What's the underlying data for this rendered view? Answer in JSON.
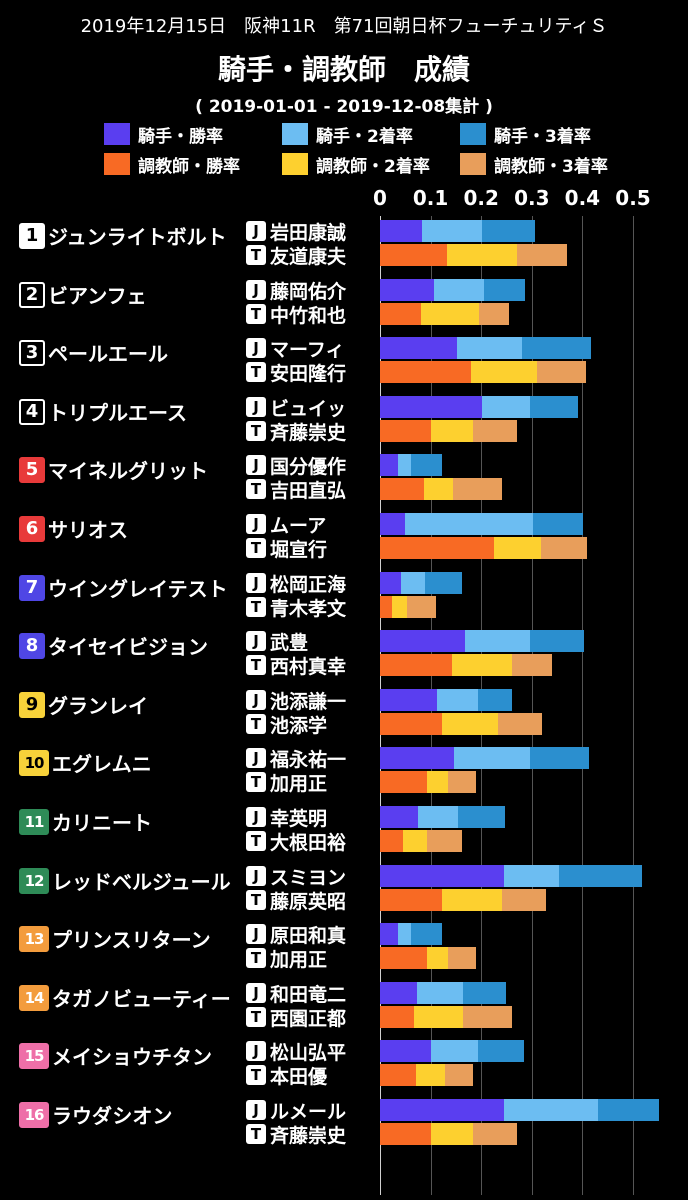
{
  "header": {
    "race_line": "2019年12月15日　阪神11R　第71回朝日杯フューチュリティＳ",
    "title": "騎手・調教師　成績",
    "period": "( 2019-01-01 - 2019-12-08集計 )"
  },
  "legend": [
    {
      "label": "騎手・勝率",
      "color": "#5a3ef0"
    },
    {
      "label": "騎手・2着率",
      "color": "#6cbdf2"
    },
    {
      "label": "騎手・3着率",
      "color": "#2b8fcf"
    },
    {
      "label": "調教師・勝率",
      "color": "#f86a24"
    },
    {
      "label": "調教師・2着率",
      "color": "#fdd02f"
    },
    {
      "label": "調教師・3着率",
      "color": "#e89e5b"
    }
  ],
  "role_marks": {
    "jockey": "J",
    "trainer": "T"
  },
  "chart_data": {
    "type": "bar",
    "stacked": true,
    "orientation": "horizontal",
    "xlim": [
      0,
      0.5
    ],
    "x_ticks": [
      "0",
      "0.1",
      "0.2",
      "0.3",
      "0.4",
      "0.5"
    ],
    "grid": true,
    "horses": [
      {
        "num": "1",
        "name": "ジュンライトボルト",
        "badge_bg": "#ffffff",
        "badge_fg": "#000000",
        "jockey": "岩田康誠",
        "jockey_rates": [
          0.083,
          0.118,
          0.105
        ],
        "trainer": "友道康夫",
        "trainer_rates": [
          0.133,
          0.137,
          0.1
        ]
      },
      {
        "num": "2",
        "name": "ビアンフェ",
        "badge_bg": "#000000",
        "badge_fg": "#ffffff",
        "jockey": "藤岡佑介",
        "jockey_rates": [
          0.106,
          0.1,
          0.081
        ],
        "trainer": "中竹和也",
        "trainer_rates": [
          0.082,
          0.113,
          0.059
        ]
      },
      {
        "num": "3",
        "name": "ペールエール",
        "badge_bg": "#000000",
        "badge_fg": "#ffffff",
        "jockey": "マーフィ",
        "jockey_rates": [
          0.152,
          0.128,
          0.137
        ],
        "trainer": "安田隆行",
        "trainer_rates": [
          0.18,
          0.131,
          0.097
        ]
      },
      {
        "num": "4",
        "name": "トリプルエース",
        "badge_bg": "#000000",
        "badge_fg": "#ffffff",
        "jockey": "ビュイッ",
        "jockey_rates": [
          0.202,
          0.094,
          0.095
        ],
        "trainer": "斉藤崇史",
        "trainer_rates": [
          0.1,
          0.083,
          0.088
        ]
      },
      {
        "num": "5",
        "name": "マイネルグリット",
        "badge_bg": "#e83a3a",
        "badge_fg": "#ffffff",
        "jockey": "国分優作",
        "jockey_rates": [
          0.036,
          0.025,
          0.061
        ],
        "trainer": "吉田直弘",
        "trainer_rates": [
          0.086,
          0.059,
          0.097
        ]
      },
      {
        "num": "6",
        "name": "サリオス",
        "badge_bg": "#e83a3a",
        "badge_fg": "#ffffff",
        "jockey": "ムーア",
        "jockey_rates": [
          0.05,
          0.252,
          0.1
        ],
        "trainer": "堀宣行",
        "trainer_rates": [
          0.225,
          0.094,
          0.091
        ]
      },
      {
        "num": "7",
        "name": "ウイングレイテスト",
        "badge_bg": "#4f46e5",
        "badge_fg": "#ffffff",
        "jockey": "松岡正海",
        "jockey_rates": [
          0.041,
          0.047,
          0.075
        ],
        "trainer": "青木孝文",
        "trainer_rates": [
          0.024,
          0.03,
          0.057
        ]
      },
      {
        "num": "8",
        "name": "タイセイビジョン",
        "badge_bg": "#4f46e5",
        "badge_fg": "#ffffff",
        "jockey": "武豊",
        "jockey_rates": [
          0.167,
          0.13,
          0.106
        ],
        "trainer": "西村真幸",
        "trainer_rates": [
          0.142,
          0.118,
          0.079
        ]
      },
      {
        "num": "9",
        "name": "グランレイ",
        "badge_bg": "#f7d23a",
        "badge_fg": "#000000",
        "jockey": "池添謙一",
        "jockey_rates": [
          0.113,
          0.081,
          0.067
        ],
        "trainer": "池添学",
        "trainer_rates": [
          0.123,
          0.111,
          0.087
        ]
      },
      {
        "num": "10",
        "name": "エグレムニ",
        "badge_bg": "#f7d23a",
        "badge_fg": "#000000",
        "jockey": "福永祐一",
        "jockey_rates": [
          0.146,
          0.151,
          0.117
        ],
        "trainer": "加用正",
        "trainer_rates": [
          0.093,
          0.042,
          0.055
        ]
      },
      {
        "num": "11",
        "name": "カリニート",
        "badge_bg": "#2e8b57",
        "badge_fg": "#ffffff",
        "jockey": "幸英明",
        "jockey_rates": [
          0.075,
          0.079,
          0.093
        ],
        "trainer": "大根田裕",
        "trainer_rates": [
          0.046,
          0.047,
          0.07
        ]
      },
      {
        "num": "12",
        "name": "レッドベルジュール",
        "badge_bg": "#2e8b57",
        "badge_fg": "#ffffff",
        "jockey": "スミヨン",
        "jockey_rates": [
          0.245,
          0.109,
          0.163
        ],
        "trainer": "藤原英昭",
        "trainer_rates": [
          0.122,
          0.12,
          0.086
        ]
      },
      {
        "num": "13",
        "name": "プリンスリターン",
        "badge_bg": "#f39c3d",
        "badge_fg": "#ffffff",
        "jockey": "原田和真",
        "jockey_rates": [
          0.036,
          0.025,
          0.061
        ],
        "trainer": "加用正",
        "trainer_rates": [
          0.093,
          0.042,
          0.055
        ]
      },
      {
        "num": "14",
        "name": "タガノビューティー",
        "badge_bg": "#f39c3d",
        "badge_fg": "#ffffff",
        "jockey": "和田竜二",
        "jockey_rates": [
          0.073,
          0.091,
          0.085
        ],
        "trainer": "西園正都",
        "trainer_rates": [
          0.067,
          0.097,
          0.096
        ]
      },
      {
        "num": "15",
        "name": "メイショウチタン",
        "badge_bg": "#ee6fa8",
        "badge_fg": "#ffffff",
        "jockey": "松山弘平",
        "jockey_rates": [
          0.101,
          0.093,
          0.09
        ],
        "trainer": "本田優",
        "trainer_rates": [
          0.071,
          0.057,
          0.055
        ]
      },
      {
        "num": "16",
        "name": "ラウダシオン",
        "badge_bg": "#ee6fa8",
        "badge_fg": "#ffffff",
        "jockey": "ルメール",
        "jockey_rates": [
          0.245,
          0.186,
          0.121
        ],
        "trainer": "斉藤崇史",
        "trainer_rates": [
          0.1,
          0.083,
          0.088
        ]
      }
    ]
  }
}
